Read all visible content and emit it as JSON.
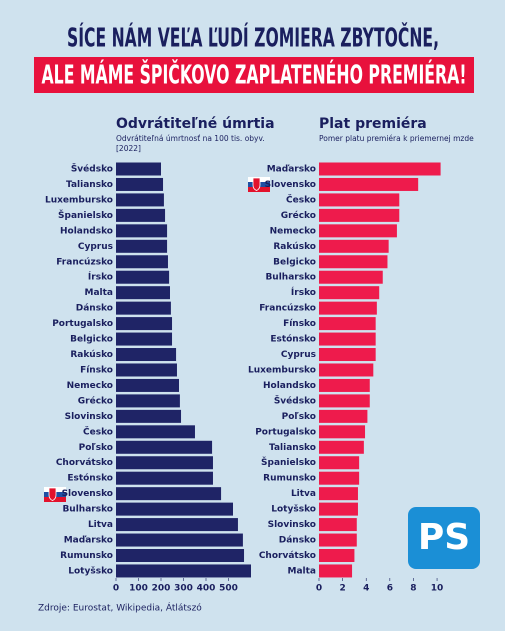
{
  "header": {
    "line1": "SÍCE NÁM VEĽA ĽUDÍ ZOMIERA ZBYTOČNE,",
    "line2": "ALE MÁME ŠPIČKOVO ZAPLATENÉHO PREMIÉRA!"
  },
  "chart_data": [
    {
      "type": "bar",
      "orientation": "horizontal",
      "title": "Odvrátiteľné úmrtia",
      "subtitle": [
        "Odvrátiteľná úmrtnosť na 100 tis. obyv.",
        "[2022]"
      ],
      "categories": [
        "Švédsko",
        "Taliansko",
        "Luxembursko",
        "Španielsko",
        "Holandsko",
        "Cyprus",
        "Francúzsko",
        "Írsko",
        "Malta",
        "Dánsko",
        "Portugalsko",
        "Belgicko",
        "Rakúsko",
        "Fínsko",
        "Nemecko",
        "Grécko",
        "Slovinsko",
        "Česko",
        "Poľsko",
        "Chorvátsko",
        "Estónsko",
        "Slovensko",
        "Bulharsko",
        "Litva",
        "Maďarsko",
        "Rumunsko",
        "Lotyšsko"
      ],
      "values": [
        200,
        209,
        213,
        218,
        227,
        227,
        231,
        236,
        240,
        244,
        249,
        249,
        267,
        271,
        280,
        284,
        289,
        351,
        427,
        431,
        431,
        467,
        520,
        542,
        564,
        569,
        600
      ],
      "color": "#1f2466",
      "xlim": [
        0,
        600
      ],
      "xticks": [
        0,
        100,
        200,
        300,
        400,
        500
      ]
    },
    {
      "type": "bar",
      "orientation": "horizontal",
      "title": "Plat premiéra",
      "subtitle": [
        "Pomer platu premiéra k priemernej mzde"
      ],
      "categories": [
        "Maďarsko",
        "Slovensko",
        "Česko",
        "Grécko",
        "Nemecko",
        "Rakúsko",
        "Belgicko",
        "Bulharsko",
        "Írsko",
        "Francúzsko",
        "Fínsko",
        "Estónsko",
        "Cyprus",
        "Luxembursko",
        "Holandsko",
        "Švédsko",
        "Poľsko",
        "Portugalsko",
        "Taliansko",
        "Španielsko",
        "Rumunsko",
        "Litva",
        "Lotyšsko",
        "Slovinsko",
        "Dánsko",
        "Chorvátsko",
        "Malta"
      ],
      "values": [
        10.3,
        8.4,
        6.8,
        6.8,
        6.6,
        5.9,
        5.8,
        5.4,
        5.1,
        4.9,
        4.8,
        4.8,
        4.8,
        4.6,
        4.3,
        4.3,
        4.1,
        3.9,
        3.8,
        3.4,
        3.4,
        3.3,
        3.3,
        3.2,
        3.2,
        3.0,
        2.8
      ],
      "color": "#ee1b4c",
      "xlim": [
        0,
        10.8
      ],
      "xticks": [
        0,
        2,
        4,
        6,
        8,
        10
      ]
    }
  ],
  "source": "Zdroje: Eurostat, Wikipedia, Átlátszó",
  "logo": "PS"
}
